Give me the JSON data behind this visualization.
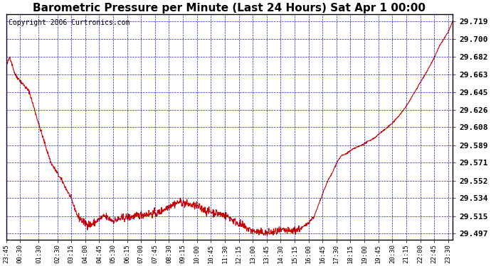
{
  "title": "Barometric Pressure per Minute (Last 24 Hours) Sat Apr 1 00:00",
  "copyright_text": "Copyright 2006 Curtronics.com",
  "y_ticks": [
    29.497,
    29.515,
    29.534,
    29.552,
    29.571,
    29.589,
    29.608,
    29.626,
    29.645,
    29.663,
    29.682,
    29.7,
    29.719
  ],
  "ylim": [
    29.49,
    29.726
  ],
  "x_labels": [
    "23:45",
    "00:30",
    "01:30",
    "02:30",
    "03:15",
    "04:00",
    "04:45",
    "05:30",
    "06:15",
    "07:00",
    "07:45",
    "08:30",
    "09:15",
    "10:00",
    "10:45",
    "11:30",
    "12:15",
    "13:00",
    "13:45",
    "14:30",
    "15:15",
    "16:00",
    "16:45",
    "17:30",
    "18:15",
    "19:00",
    "19:45",
    "20:30",
    "21:15",
    "22:00",
    "22:45",
    "23:30"
  ],
  "line_color": "#cc0000",
  "background_color": "white",
  "grid_color": "#0000cc",
  "title_fontsize": 11,
  "copyright_fontsize": 7,
  "ytick_fontsize": 8,
  "xtick_fontsize": 6.5
}
